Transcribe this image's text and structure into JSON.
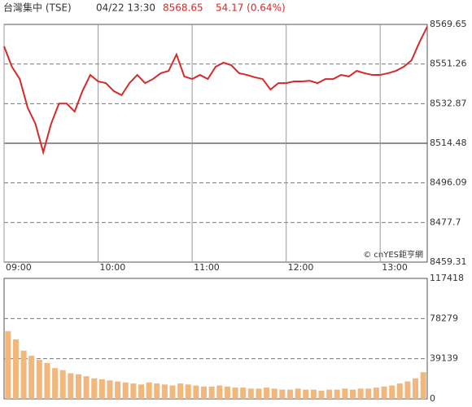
{
  "header": {
    "name": "台灣集中 (TSE)",
    "time": "04/22 13:30",
    "price": 8568.65,
    "change": "54.17 (0.64%)"
  },
  "chart_data": [
    {
      "type": "line",
      "color": "#d42a2a",
      "watermark": "© cnYES鉅亨網",
      "x": [
        "09:00",
        "09:05",
        "09:10",
        "09:15",
        "09:20",
        "09:25",
        "09:30",
        "09:35",
        "09:40",
        "09:45",
        "09:50",
        "09:55",
        "10:00",
        "10:05",
        "10:10",
        "10:15",
        "10:20",
        "10:25",
        "10:30",
        "10:35",
        "10:40",
        "10:45",
        "10:50",
        "10:55",
        "11:00",
        "11:05",
        "11:10",
        "11:15",
        "11:20",
        "11:25",
        "11:30",
        "11:35",
        "11:40",
        "11:45",
        "11:50",
        "11:55",
        "12:00",
        "12:05",
        "12:10",
        "12:15",
        "12:20",
        "12:25",
        "12:30",
        "12:35",
        "12:40",
        "12:45",
        "12:50",
        "12:55",
        "13:00",
        "13:05",
        "13:10",
        "13:15",
        "13:20",
        "13:25",
        "13:30"
      ],
      "values": [
        8559.5,
        8550,
        8544.3,
        8531.1,
        8523.5,
        8510.3,
        8523.5,
        8532.9,
        8532.9,
        8529.2,
        8538.7,
        8546.2,
        8543.2,
        8542.4,
        8538.7,
        8536.8,
        8542.4,
        8546.2,
        8542.4,
        8544.3,
        8547,
        8548.1,
        8555.7,
        8545.5,
        8544.3,
        8546.2,
        8544.3,
        8550,
        8551.9,
        8550.7,
        8547,
        8546.2,
        8545.1,
        8544.3,
        8539.4,
        8542.4,
        8542.4,
        8543.2,
        8543.2,
        8543.5,
        8542.4,
        8544.3,
        8544.3,
        8546.2,
        8545.5,
        8548.1,
        8547,
        8546.2,
        8546.2,
        8547,
        8548.1,
        8550,
        8553,
        8561.3,
        8568.65
      ],
      "xlim": [
        "09:00",
        "13:30"
      ],
      "xticks": [
        "09:00",
        "10:00",
        "11:00",
        "12:00",
        "13:00"
      ],
      "ylim": [
        8459.31,
        8569.65
      ],
      "yticks": [
        8459.31,
        8477.7,
        8496.09,
        8514.48,
        8532.87,
        8551.26,
        8569.65
      ],
      "baseline": 8514.48
    },
    {
      "type": "bar",
      "color": "#f2b77c",
      "x": [
        "09:00",
        "09:05",
        "09:10",
        "09:15",
        "09:20",
        "09:25",
        "09:30",
        "09:35",
        "09:40",
        "09:45",
        "09:50",
        "09:55",
        "10:00",
        "10:05",
        "10:10",
        "10:15",
        "10:20",
        "10:25",
        "10:30",
        "10:35",
        "10:40",
        "10:45",
        "10:50",
        "10:55",
        "11:00",
        "11:05",
        "11:10",
        "11:15",
        "11:20",
        "11:25",
        "11:30",
        "11:35",
        "11:40",
        "11:45",
        "11:50",
        "11:55",
        "12:00",
        "12:05",
        "12:10",
        "12:15",
        "12:20",
        "12:25",
        "12:30",
        "12:35",
        "12:40",
        "12:45",
        "12:50",
        "12:55",
        "13:00",
        "13:05",
        "13:10",
        "13:15",
        "13:20",
        "13:25"
      ],
      "values": [
        66000,
        58000,
        47000,
        42000,
        38000,
        35000,
        30000,
        28000,
        25000,
        24000,
        22000,
        20000,
        19000,
        18000,
        17000,
        16000,
        15000,
        14000,
        16000,
        15000,
        14000,
        13000,
        15000,
        14000,
        13000,
        12000,
        12000,
        13000,
        12000,
        11000,
        11000,
        10000,
        10000,
        11000,
        10000,
        9000,
        9000,
        10000,
        9000,
        9000,
        8000,
        9000,
        9000,
        10000,
        9000,
        10000,
        10000,
        11000,
        12000,
        13000,
        15000,
        17000,
        20000,
        26000
      ],
      "xlim": [
        "09:00",
        "13:30"
      ],
      "ylim": [
        0,
        117418
      ],
      "yticks": [
        0,
        39139,
        78279,
        117418
      ]
    }
  ]
}
